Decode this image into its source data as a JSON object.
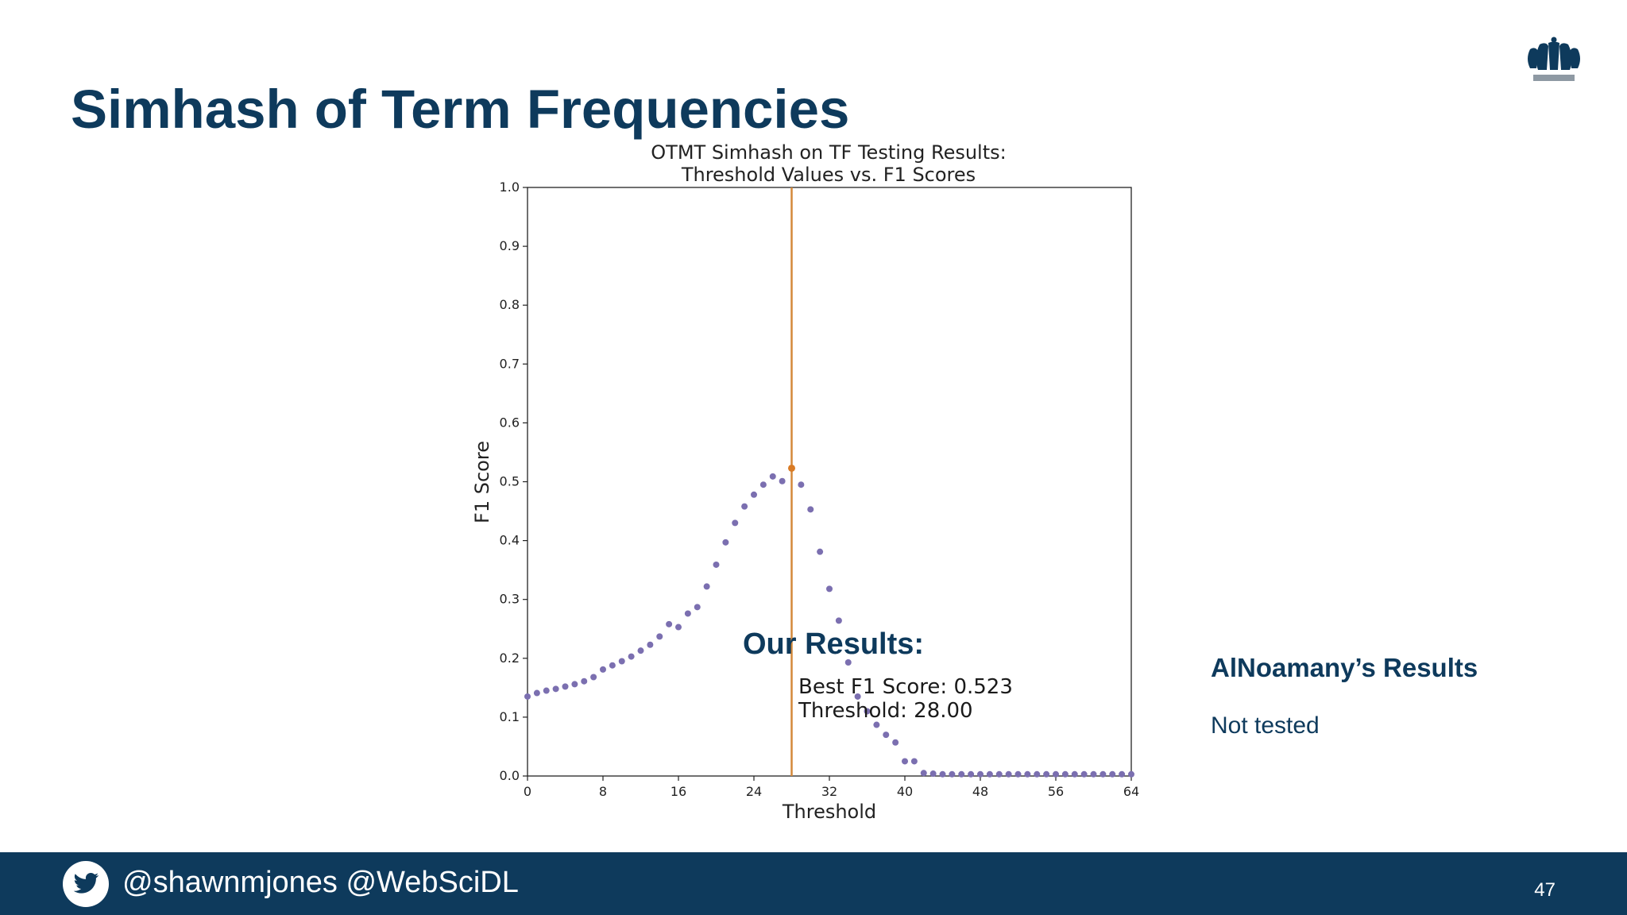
{
  "slide": {
    "title": "Simhash of Term Frequencies",
    "our_results_heading": "Our Results:",
    "other_results_heading": "AlNoamany’s Results",
    "other_results_text": "Not tested",
    "footer_handles": "@shawnmjones @WebSciDL",
    "page_number": "47",
    "logo_icon": "crown-icon",
    "footer_icon": "twitter-icon",
    "colors": {
      "brand_navy": "#0e3a5c",
      "points": "#7b6fb0",
      "highlight": "#d97b25",
      "threshold_line": "#d4893a"
    }
  },
  "chart_data": {
    "type": "scatter",
    "title": "OTMT Simhash on TF Testing Results:",
    "subtitle": "Threshold Values vs. F1 Scores",
    "xlabel": "Threshold",
    "ylabel": "F1 Score",
    "xlim": [
      0,
      64
    ],
    "ylim": [
      0,
      1.0
    ],
    "xticks": [
      0,
      8,
      16,
      24,
      32,
      40,
      48,
      56,
      64
    ],
    "yticks": [
      "0.0",
      "0.1",
      "0.2",
      "0.3",
      "0.4",
      "0.5",
      "0.6",
      "0.7",
      "0.8",
      "0.9",
      "1.0"
    ],
    "grid": false,
    "x": [
      0,
      1,
      2,
      3,
      4,
      5,
      6,
      7,
      8,
      9,
      10,
      11,
      12,
      13,
      14,
      15,
      16,
      17,
      18,
      19,
      20,
      21,
      22,
      23,
      24,
      25,
      26,
      27,
      28,
      29,
      30,
      31,
      32,
      33,
      34,
      35,
      36,
      37,
      38,
      39,
      40,
      41,
      42,
      43,
      44,
      45,
      46,
      47,
      48,
      49,
      50,
      51,
      52,
      53,
      54,
      55,
      56,
      57,
      58,
      59,
      60,
      61,
      62,
      63,
      64
    ],
    "y": [
      0.135,
      0.141,
      0.145,
      0.148,
      0.152,
      0.156,
      0.161,
      0.168,
      0.181,
      0.188,
      0.195,
      0.203,
      0.213,
      0.223,
      0.237,
      0.258,
      0.253,
      0.276,
      0.287,
      0.322,
      0.359,
      0.397,
      0.43,
      0.458,
      0.478,
      0.495,
      0.509,
      0.501,
      0.523,
      0.495,
      0.453,
      0.381,
      0.318,
      0.264,
      0.193,
      0.135,
      0.11,
      0.087,
      0.07,
      0.057,
      0.025,
      0.025,
      0.005,
      0.004,
      0.003,
      0.003,
      0.003,
      0.003,
      0.003,
      0.003,
      0.003,
      0.003,
      0.003,
      0.003,
      0.003,
      0.003,
      0.003,
      0.003,
      0.003,
      0.003,
      0.003,
      0.003,
      0.003,
      0.003,
      0.003
    ],
    "best": {
      "threshold": 28,
      "f1": 0.523
    },
    "vline_x": 28,
    "annotation": [
      "Best F1 Score: 0.523",
      "Threshold: 28.00"
    ]
  }
}
